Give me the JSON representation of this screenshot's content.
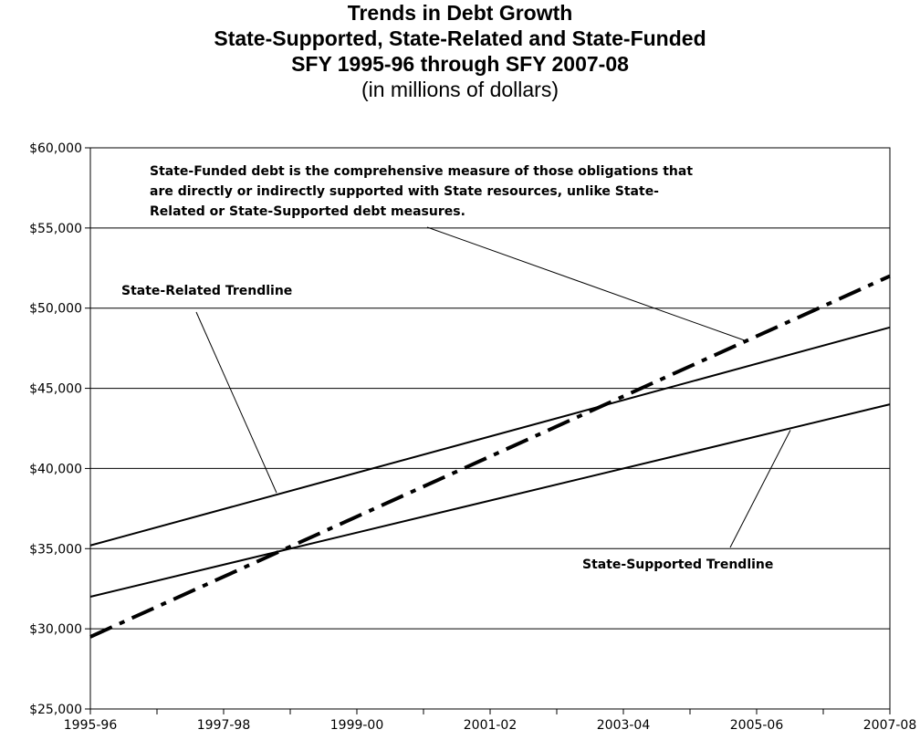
{
  "chart_data": {
    "type": "line",
    "title_lines": [
      "Trends in Debt Growth",
      "State-Supported, State-Related and State-Funded",
      "SFY 1995-96 through SFY 2007-08"
    ],
    "subtitle": "(in millions of dollars)",
    "x_tick_labels": [
      "1995-96",
      "1997-98",
      "1999-00",
      "2001-02",
      "2003-04",
      "2005-06",
      "2007-08"
    ],
    "y_tick_labels": [
      "$25,000",
      "$30,000",
      "$35,000",
      "$40,000",
      "$45,000",
      "$50,000",
      "$55,000",
      "$60,000"
    ],
    "ylim": [
      25000,
      60000
    ],
    "y_ticks": [
      25000,
      30000,
      35000,
      40000,
      45000,
      50000,
      55000,
      60000
    ],
    "grid": true,
    "series": [
      {
        "name": "State-Related Trendline",
        "x": [
          "1995-96",
          "2007-08"
        ],
        "y": [
          35200,
          48800
        ],
        "style": "solid"
      },
      {
        "name": "State-Supported Trendline",
        "x": [
          "1995-96",
          "2007-08"
        ],
        "y": [
          32000,
          44000
        ],
        "style": "solid"
      },
      {
        "name": "State-Funded",
        "x": [
          "1995-96",
          "2007-08"
        ],
        "y": [
          29500,
          52000
        ],
        "style": "dash-dot"
      }
    ],
    "annotations": {
      "state_funded_lines": [
        "State-Funded debt is the comprehensive measure of those obligations that",
        "are directly or indirectly supported with State resources, unlike State-",
        "Related or State-Supported debt measures."
      ],
      "state_related": "State-Related Trendline",
      "state_supported": "State-Supported Trendline"
    },
    "colors": {
      "lines": "#000000",
      "grid": "#000000",
      "background": "#ffffff"
    }
  }
}
